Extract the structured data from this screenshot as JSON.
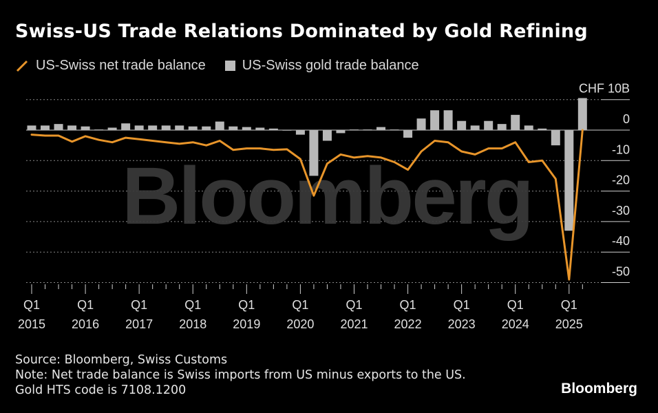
{
  "header": {
    "title": "Swiss-US Trade Relations Dominated by Gold Refining"
  },
  "legend": {
    "line_label": "US-Swiss net trade balance",
    "bar_label": "US-Swiss gold trade balance"
  },
  "footer": {
    "source": "Source: Bloomberg, Swiss Customs",
    "note": "Note: Net trade balance is Swiss imports from US minus exports to the US.",
    "hts": "Gold HTS code is 7108.1200"
  },
  "brand": {
    "name": "Bloomberg"
  },
  "watermark": {
    "text": "Bloomberg"
  },
  "colors": {
    "line": "#e8952a",
    "bar": "#b8b8b8",
    "grid": "#8a8a8a",
    "background": "#000000"
  },
  "chart_data": {
    "type": "bar+line",
    "unit_label": "CHF 10B",
    "ylim": [
      -55,
      10
    ],
    "yticks": [
      10,
      0,
      -10,
      -20,
      -30,
      -40,
      -50
    ],
    "ytick_labels": [
      "CHF 10B",
      "0",
      "-10",
      "-20",
      "-30",
      "-40",
      "-50"
    ],
    "grid": true,
    "legend_position": "top-left",
    "x_ticks": [
      {
        "q": "Q1",
        "year": "2015"
      },
      {
        "q": "Q1",
        "year": "2016"
      },
      {
        "q": "Q1",
        "year": "2017"
      },
      {
        "q": "Q1",
        "year": "2018"
      },
      {
        "q": "Q1",
        "year": "2019"
      },
      {
        "q": "Q1",
        "year": "2020"
      },
      {
        "q": "Q1",
        "year": "2021"
      },
      {
        "q": "Q1",
        "year": "2022"
      },
      {
        "q": "Q1",
        "year": "2023"
      },
      {
        "q": "Q1",
        "year": "2024"
      },
      {
        "q": "Q1",
        "year": "2025"
      }
    ],
    "periods": [
      "2015Q1",
      "2015Q2",
      "2015Q3",
      "2015Q4",
      "2016Q1",
      "2016Q2",
      "2016Q3",
      "2016Q4",
      "2017Q1",
      "2017Q2",
      "2017Q3",
      "2017Q4",
      "2018Q1",
      "2018Q2",
      "2018Q3",
      "2018Q4",
      "2019Q1",
      "2019Q2",
      "2019Q3",
      "2019Q4",
      "2020Q1",
      "2020Q2",
      "2020Q3",
      "2020Q4",
      "2021Q1",
      "2021Q2",
      "2021Q3",
      "2021Q4",
      "2022Q1",
      "2022Q2",
      "2022Q3",
      "2022Q4",
      "2023Q1",
      "2023Q2",
      "2023Q3",
      "2023Q4",
      "2024Q1",
      "2024Q2",
      "2024Q3",
      "2024Q4",
      "2025Q1",
      "2025Q2"
    ],
    "series": [
      {
        "name": "US-Swiss gold trade balance",
        "kind": "bar",
        "values": [
          1.5,
          1.5,
          2,
          1.5,
          1.2,
          0.2,
          0.8,
          2.2,
          1.5,
          1.5,
          1.5,
          1.5,
          1.2,
          1.2,
          2.8,
          1.2,
          1,
          0.8,
          0.5,
          0,
          -1.5,
          -15,
          -3.5,
          -1,
          0.2,
          0.2,
          1,
          0.2,
          -2.5,
          3.8,
          6.5,
          6.5,
          3,
          1.5,
          3,
          2,
          5,
          1.5,
          0.5,
          -5,
          -33,
          10.5
        ]
      },
      {
        "name": "US-Swiss net trade balance",
        "kind": "line",
        "values": [
          -1.5,
          -1.8,
          -1.8,
          -3.8,
          -2,
          -3.2,
          -4,
          -2.5,
          -3,
          -3.5,
          -4,
          -4.5,
          -4,
          -5,
          -3.5,
          -6.5,
          -6,
          -6,
          -6.5,
          -6.3,
          -9.5,
          -21.5,
          -11,
          -8,
          -9,
          -8.5,
          -9,
          -10.5,
          -13,
          -7,
          -3.5,
          -4,
          -7,
          -8,
          -6,
          -6,
          -4,
          -10.5,
          -10,
          -16,
          -49,
          0
        ]
      }
    ]
  }
}
